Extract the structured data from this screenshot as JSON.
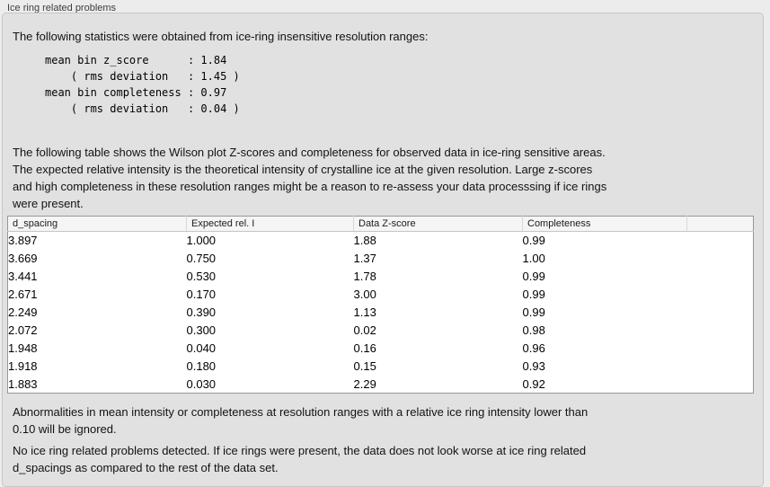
{
  "colors": {
    "page_bg": "#ececec",
    "panel_bg": "#e1e1e1",
    "table_header_bg": "#f5f5f5",
    "table_bg": "#ffffff"
  },
  "panel": {
    "title": "Ice ring related problems",
    "intro": "The following statistics were obtained from ice-ring insensitive resolution ranges:",
    "stats_block": "mean bin z_score      : 1.84\n    ( rms deviation   : 1.45 )\nmean bin completeness : 0.97\n    ( rms deviation   : 0.04 )",
    "table_description": "The following table shows the Wilson plot Z-scores and completeness for observed data in ice-ring sensitive areas.\nThe expected relative intensity is the theoretical intensity of crystalline ice at the given resolution. Large z-scores\nand high completeness in these resolution ranges might be a reason to re-assess your data processsing if ice rings\nwere present.",
    "table": {
      "columns": [
        "d_spacing",
        "Expected rel. I",
        "Data Z-score",
        "Completeness",
        ""
      ],
      "rows": [
        [
          "3.897",
          "1.000",
          "1.88",
          "0.99"
        ],
        [
          "3.669",
          "0.750",
          "1.37",
          "1.00"
        ],
        [
          "3.441",
          "0.530",
          "1.78",
          "0.99"
        ],
        [
          "2.671",
          "0.170",
          "3.00",
          "0.99"
        ],
        [
          "2.249",
          "0.390",
          "1.13",
          "0.99"
        ],
        [
          "2.072",
          "0.300",
          "0.02",
          "0.98"
        ],
        [
          "1.948",
          "0.040",
          "0.16",
          "0.96"
        ],
        [
          "1.918",
          "0.180",
          "0.15",
          "0.93"
        ],
        [
          "1.883",
          "0.030",
          "2.29",
          "0.92"
        ]
      ]
    },
    "ignore_note": "Abnormalities in mean intensity or completeness at resolution ranges with a relative ice ring intensity lower than\n0.10 will be ignored.",
    "conclusion": "No ice ring related problems detected. If ice rings were present, the data does not look worse at ice ring related\nd_spacings as compared to the rest of the data set."
  }
}
